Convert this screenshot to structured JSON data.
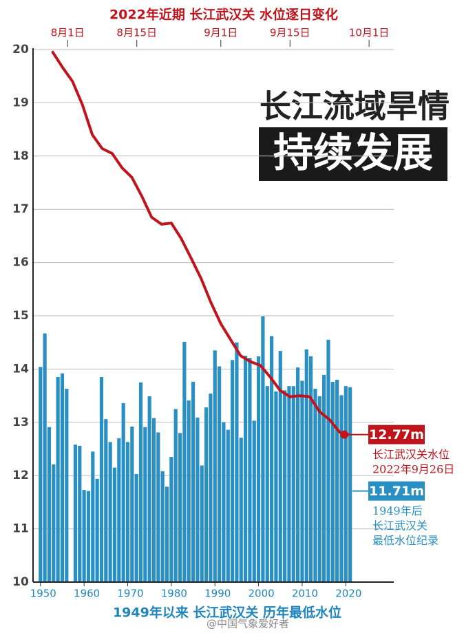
{
  "chart_data": [
    {
      "type": "bar",
      "title": "1949年以来 长江武汉关 历年最低水位",
      "color": "#2a90c4",
      "x": [
        1950,
        1951,
        1952,
        1953,
        1954,
        1955,
        1956,
        1957,
        1958,
        1959,
        1960,
        1961,
        1962,
        1963,
        1964,
        1965,
        1966,
        1967,
        1968,
        1969,
        1970,
        1971,
        1972,
        1973,
        1974,
        1975,
        1976,
        1977,
        1978,
        1979,
        1980,
        1981,
        1982,
        1983,
        1984,
        1985,
        1986,
        1987,
        1988,
        1989,
        1990,
        1991,
        1992,
        1993,
        1994,
        1995,
        1996,
        1997,
        1998,
        1999,
        2000,
        2001,
        2002,
        2003,
        2004,
        2005,
        2006,
        2007,
        2008,
        2009,
        2010,
        2011,
        2012,
        2013,
        2014,
        2015,
        2016,
        2017,
        2018,
        2019,
        2020,
        2021
      ],
      "values": [
        14.04,
        14.67,
        12.91,
        12.21,
        13.85,
        13.92,
        13.63,
        null,
        12.58,
        12.56,
        11.73,
        11.71,
        12.45,
        11.94,
        13.85,
        13.06,
        12.63,
        12.15,
        12.7,
        13.36,
        12.63,
        12.92,
        12.03,
        13.75,
        12.91,
        13.49,
        13.08,
        12.81,
        12.08,
        11.79,
        12.35,
        13.25,
        12.8,
        14.51,
        13.41,
        13.76,
        13.09,
        12.19,
        13.28,
        13.54,
        14.35,
        14.05,
        13.0,
        12.86,
        14.17,
        14.5,
        12.71,
        14.25,
        14.21,
        13.03,
        14.24,
        14.99,
        13.68,
        14.62,
        13.58,
        14.34,
        13.6,
        13.68,
        13.68,
        14.03,
        13.78,
        14.37,
        14.24,
        13.63,
        13.49,
        13.89,
        14.55,
        13.76,
        13.8,
        13.51,
        13.68,
        13.66
      ],
      "xlim": [
        1948.3,
        2031
      ],
      "xticks": [
        1950,
        1960,
        1970,
        1980,
        1990,
        2000,
        2010,
        2020
      ],
      "ylim": [
        10,
        20
      ],
      "yticks": [
        10,
        11,
        12,
        13,
        14,
        15,
        16,
        17,
        18,
        19,
        20
      ],
      "grid": true
    },
    {
      "type": "line",
      "title": "2022年近期 长江武汉关 水位逐日变化",
      "color": "#c0141c",
      "x": [
        "2022-07-29",
        "2022-07-31",
        "2022-08-02",
        "2022-08-04",
        "2022-08-06",
        "2022-08-08",
        "2022-08-10",
        "2022-08-12",
        "2022-08-14",
        "2022-08-16",
        "2022-08-18",
        "2022-08-20",
        "2022-08-22",
        "2022-08-24",
        "2022-08-26",
        "2022-08-28",
        "2022-08-30",
        "2022-09-01",
        "2022-09-03",
        "2022-09-05",
        "2022-09-07",
        "2022-09-09",
        "2022-09-11",
        "2022-09-13",
        "2022-09-15",
        "2022-09-17",
        "2022-09-19",
        "2022-09-21",
        "2022-09-23",
        "2022-09-25",
        "2022-09-26"
      ],
      "values": [
        19.95,
        19.66,
        19.4,
        18.96,
        18.4,
        18.14,
        18.05,
        17.78,
        17.6,
        17.25,
        16.85,
        16.72,
        16.74,
        16.45,
        16.08,
        15.7,
        15.25,
        14.85,
        14.55,
        14.25,
        14.14,
        14.07,
        13.85,
        13.6,
        13.48,
        13.5,
        13.48,
        13.2,
        13.05,
        12.82,
        12.77
      ],
      "xlim": [
        "2022-07-25",
        "2022-10-06"
      ],
      "xticks": [
        {
          "value": "2022-08-01",
          "label": "8月1日"
        },
        {
          "value": "2022-08-15",
          "label": "8月15日"
        },
        {
          "value": "2022-09-01",
          "label": "9月1日"
        },
        {
          "value": "2022-09-15",
          "label": "9月15日"
        },
        {
          "value": "2022-10-01",
          "label": "10月1日"
        }
      ]
    }
  ],
  "headline": [
    "长江流域旱情",
    "持续发展"
  ],
  "annotations": [
    {
      "value": 12.77,
      "value_label": "12.77m",
      "lines": [
        "长江武汉关水位",
        "2022年9月26日"
      ]
    },
    {
      "value": 11.71,
      "value_label": "11.71m",
      "lines": [
        "1949年后",
        "长江武汉关",
        "最低水位纪录"
      ]
    }
  ],
  "watermark": "@中国气象爱好者"
}
